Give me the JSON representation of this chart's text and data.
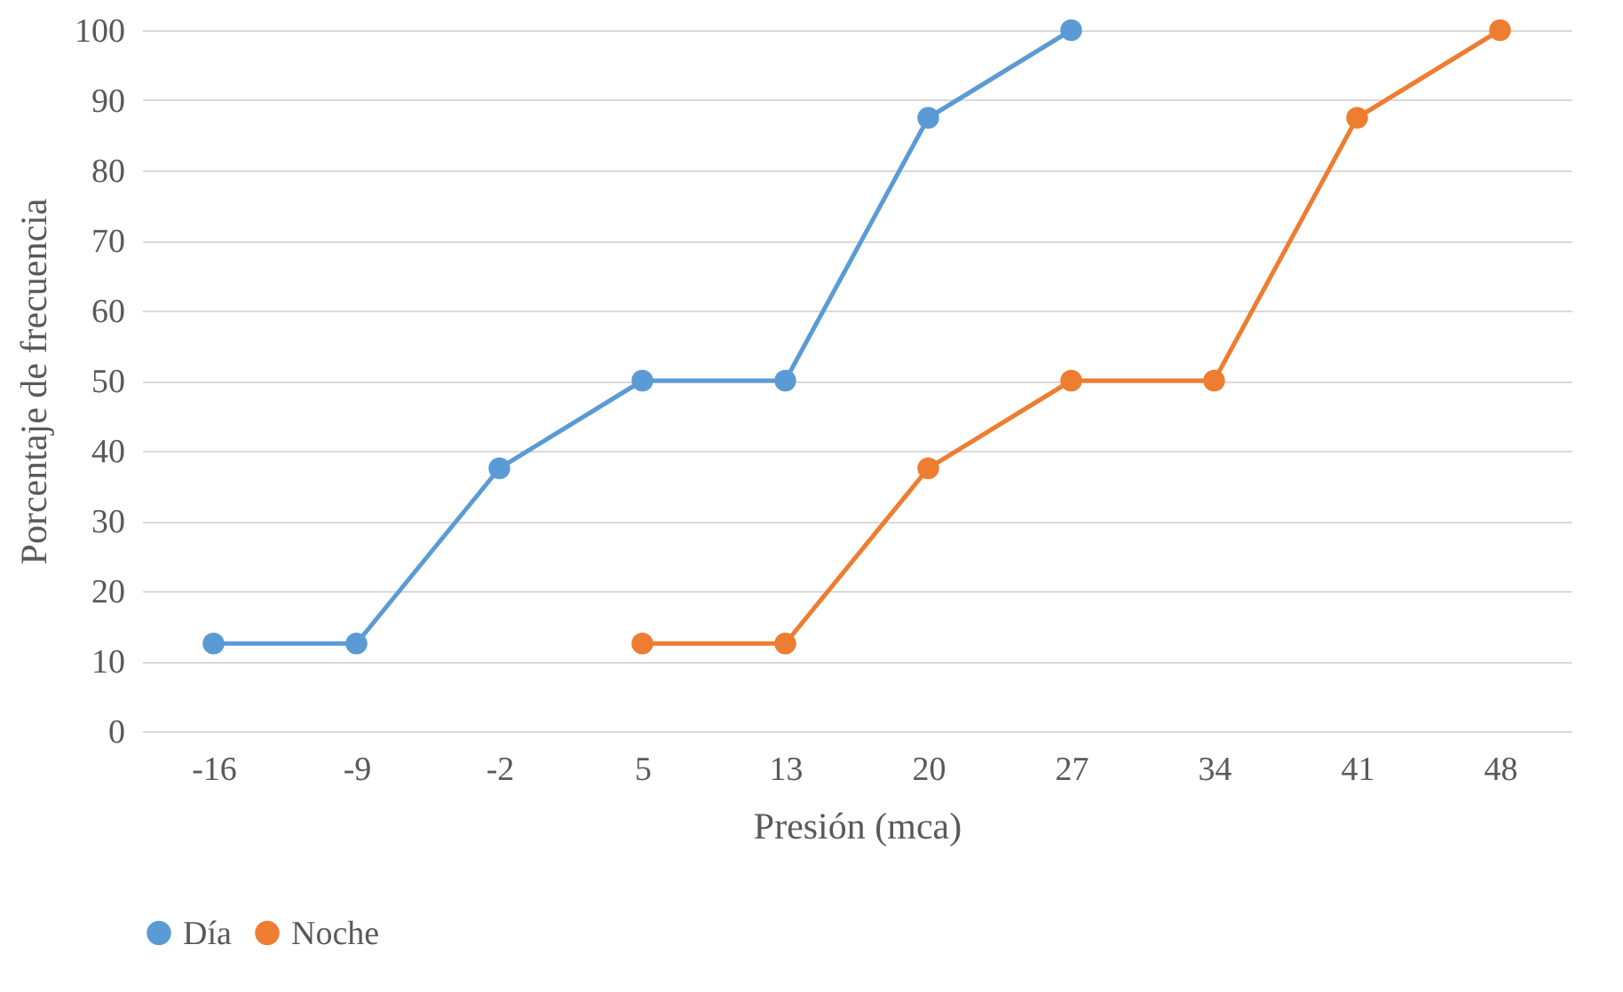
{
  "chart_data": {
    "type": "line",
    "xlabel": "Presión (mca)",
    "ylabel": "Porcentaje de frecuencia",
    "categories": [
      "-16",
      "-9",
      "-2",
      "5",
      "13",
      "20",
      "27",
      "34",
      "41",
      "48"
    ],
    "series": [
      {
        "name": "Día",
        "color": "#5b9bd5",
        "values": [
          12.5,
          12.5,
          37.5,
          50,
          50,
          87.5,
          100,
          null,
          null,
          null
        ]
      },
      {
        "name": "Noche",
        "color": "#ed7d31",
        "values": [
          null,
          null,
          null,
          12.5,
          12.5,
          37.5,
          50,
          50,
          87.5,
          100
        ]
      }
    ],
    "ylim": [
      0,
      100
    ],
    "yticks": [
      0,
      10,
      20,
      30,
      40,
      50,
      60,
      70,
      80,
      90,
      100
    ],
    "grid": "y",
    "legend": "bottom",
    "marker": "circle",
    "line_style": "solid"
  }
}
